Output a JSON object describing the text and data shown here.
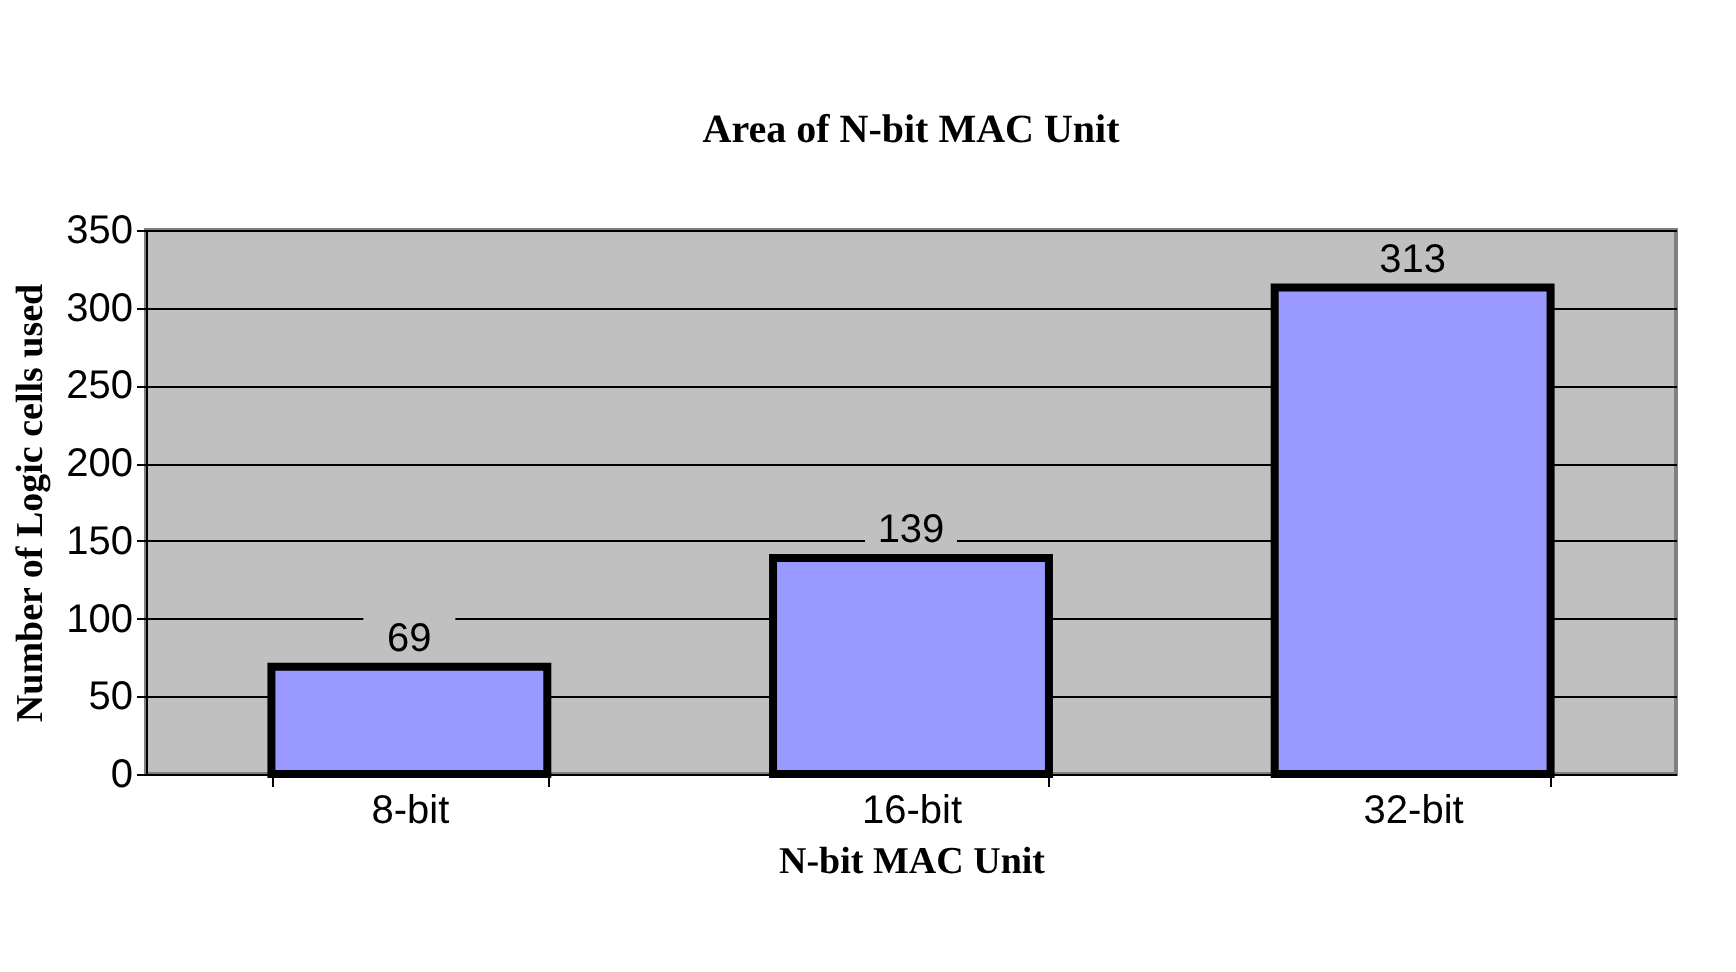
{
  "chart_data": {
    "type": "bar",
    "title": "Area of N-bit MAC Unit",
    "xlabel": "N-bit MAC Unit",
    "ylabel": "Number of Logic cells used",
    "categories": [
      "8-bit",
      "16-bit",
      "32-bit"
    ],
    "values": [
      69,
      139,
      313
    ],
    "color": "#9999ff",
    "ylim": [
      0,
      350
    ],
    "yticks": [
      0,
      50,
      100,
      150,
      200,
      250,
      300,
      350
    ],
    "grid": "y",
    "data_labels": true
  }
}
